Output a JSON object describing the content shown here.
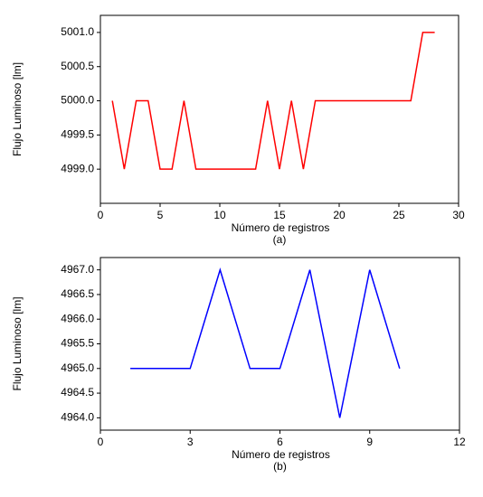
{
  "chart_data": [
    {
      "type": "line",
      "x": [
        1,
        2,
        3,
        4,
        5,
        6,
        7,
        8,
        9,
        10,
        11,
        12,
        13,
        14,
        15,
        16,
        17,
        18,
        19,
        20,
        21,
        22,
        23,
        24,
        25,
        26,
        27,
        28
      ],
      "values": [
        5000,
        4999,
        5000,
        5000,
        4999,
        4999,
        5000,
        4999,
        4999,
        4999,
        4999,
        4999,
        4999,
        5000,
        4999,
        5000,
        4999,
        5000,
        5000,
        5000,
        5000,
        5000,
        5000,
        5000,
        5000,
        5000,
        5001,
        5001
      ],
      "color": "#ff0000",
      "xlim": [
        0,
        30
      ],
      "ylim": [
        4998.5,
        5001.25
      ],
      "xticks": [
        0,
        5,
        10,
        15,
        20,
        25,
        30
      ],
      "yticks": [
        {
          "value": 4999,
          "label": "4999.0"
        },
        {
          "value": 4999.5,
          "label": "4999.5"
        },
        {
          "value": 5000,
          "label": "5000.0"
        },
        {
          "value": 5000.5,
          "label": "5000.5"
        },
        {
          "value": 5001,
          "label": "5001.0"
        }
      ],
      "x_label": "Número de registros",
      "y_label": "Flujo Luminoso [lm]",
      "caption": "(a)"
    },
    {
      "type": "line",
      "x": [
        1,
        2,
        3,
        4,
        5,
        6,
        7,
        8,
        9,
        10
      ],
      "values": [
        4965,
        4965,
        4965,
        4967,
        4965,
        4965,
        4967,
        4964,
        4967,
        4965
      ],
      "color": "#0000ff",
      "xlim": [
        0,
        12
      ],
      "ylim": [
        4963.75,
        4967.25
      ],
      "xticks": [
        0,
        3,
        6,
        9,
        12
      ],
      "yticks": [
        {
          "value": 4964,
          "label": "4964.0"
        },
        {
          "value": 4964.5,
          "label": "4964.5"
        },
        {
          "value": 4965,
          "label": "4965.0"
        },
        {
          "value": 4965.5,
          "label": "4965.5"
        },
        {
          "value": 4966,
          "label": "4966.0"
        },
        {
          "value": 4966.5,
          "label": "4966.5"
        },
        {
          "value": 4967,
          "label": "4967.0"
        }
      ],
      "x_label": "Número de registros",
      "y_label": "Flujo Luminoso [lm]",
      "caption": "(b)"
    }
  ]
}
